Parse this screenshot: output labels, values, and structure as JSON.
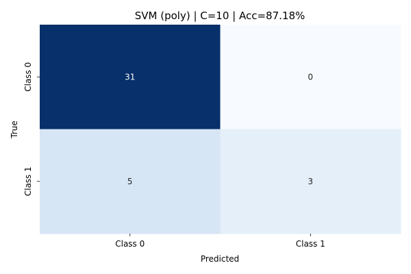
{
  "chart_data": {
    "type": "heatmap",
    "title": "SVM (poly) | C=10 | Acc=87.18%",
    "xlabel": "Predicted",
    "ylabel": "True",
    "x_categories": [
      "Class 0",
      "Class 1"
    ],
    "y_categories": [
      "Class 0",
      "Class 1"
    ],
    "values": [
      [
        31,
        0
      ],
      [
        5,
        3
      ]
    ],
    "colormap": "Blues",
    "vmin": 0,
    "vmax": 31,
    "colors": {
      "low": "#f7fbff",
      "high": "#08306b",
      "text_dark": "#262626",
      "text_light": "#ffffff"
    },
    "colorbar": false,
    "grid": false
  }
}
